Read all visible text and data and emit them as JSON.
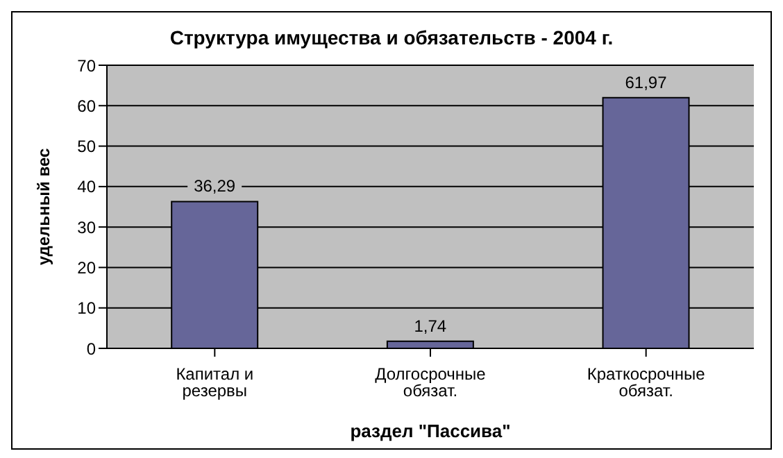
{
  "chart_data": {
    "type": "bar",
    "title": "Структура имущества и обязательств - 2004 г.",
    "xlabel": "раздел \"Пассива\"",
    "ylabel": "удельный вес",
    "categories": [
      "Капитал и резервы",
      "Долгосрочные обязат.",
      "Краткосрочные обязат."
    ],
    "values": [
      36.29,
      1.74,
      61.97
    ],
    "value_labels": [
      "36,29",
      "1,74",
      "61,97"
    ],
    "color": "#666699",
    "ylim": [
      0,
      70
    ],
    "yticks": [
      0,
      10,
      20,
      30,
      40,
      50,
      60,
      70
    ],
    "grid": "y"
  }
}
